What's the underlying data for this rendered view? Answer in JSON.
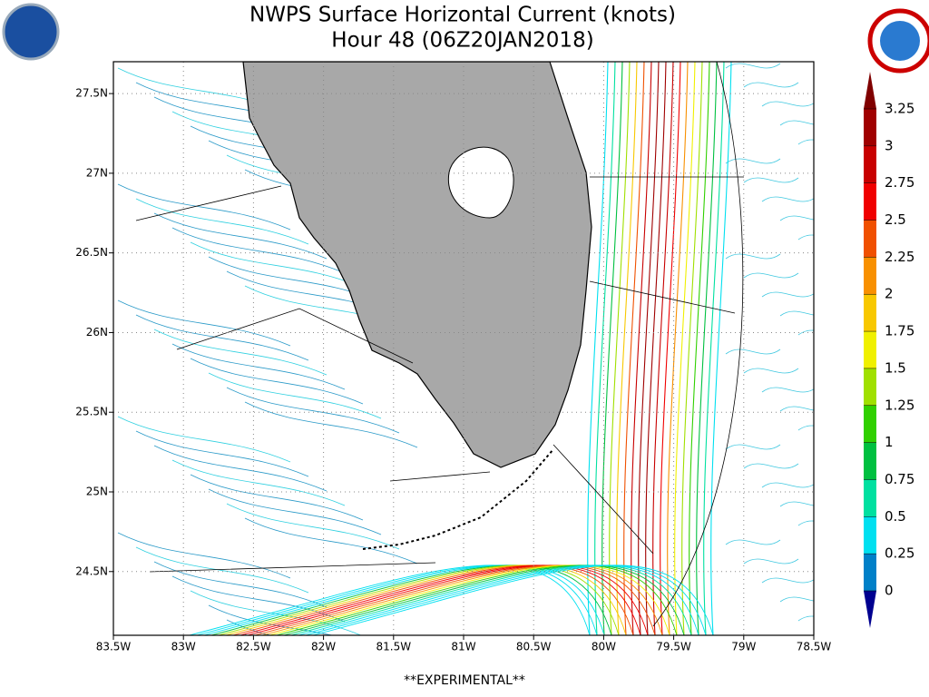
{
  "title": "NWPS Surface Horizontal Current (knots)",
  "subtitle": "Hour 48 (06Z20JAN2018)",
  "footer": "**EXPERIMENTAL**",
  "map": {
    "xlim": [
      -83.5,
      -78.5
    ],
    "ylim": [
      24.1,
      27.7
    ],
    "xticks": [
      {
        "value": -83.5,
        "label": "83.5W"
      },
      {
        "value": -83,
        "label": "83W"
      },
      {
        "value": -82.5,
        "label": "82.5W"
      },
      {
        "value": -82,
        "label": "82W"
      },
      {
        "value": -81.5,
        "label": "81.5W"
      },
      {
        "value": -81,
        "label": "81W"
      },
      {
        "value": -80.5,
        "label": "80.5W"
      },
      {
        "value": -80,
        "label": "80W"
      },
      {
        "value": -79.5,
        "label": "79.5W"
      },
      {
        "value": -79,
        "label": "79W"
      },
      {
        "value": -78.5,
        "label": "78.5W"
      }
    ],
    "yticks": [
      {
        "value": 24.5,
        "label": "24.5N"
      },
      {
        "value": 25,
        "label": "25N"
      },
      {
        "value": 25.5,
        "label": "25.5N"
      },
      {
        "value": 26,
        "label": "26N"
      },
      {
        "value": 26.5,
        "label": "26.5N"
      },
      {
        "value": 27,
        "label": "27N"
      },
      {
        "value": 27.5,
        "label": "27.5N"
      }
    ]
  },
  "colorbar": {
    "ticks": [
      0,
      0.25,
      0.5,
      0.75,
      1,
      1.25,
      1.5,
      1.75,
      2,
      2.25,
      2.5,
      2.75,
      3,
      3.25
    ],
    "colors": [
      "#0080c8",
      "#00e0f0",
      "#00e0a0",
      "#00c040",
      "#30d000",
      "#a0e000",
      "#f0f000",
      "#f8c800",
      "#f89000",
      "#f05000",
      "#f00000",
      "#c80000",
      "#a00000"
    ],
    "under_color": "#000090",
    "over_color": "#800000"
  }
}
